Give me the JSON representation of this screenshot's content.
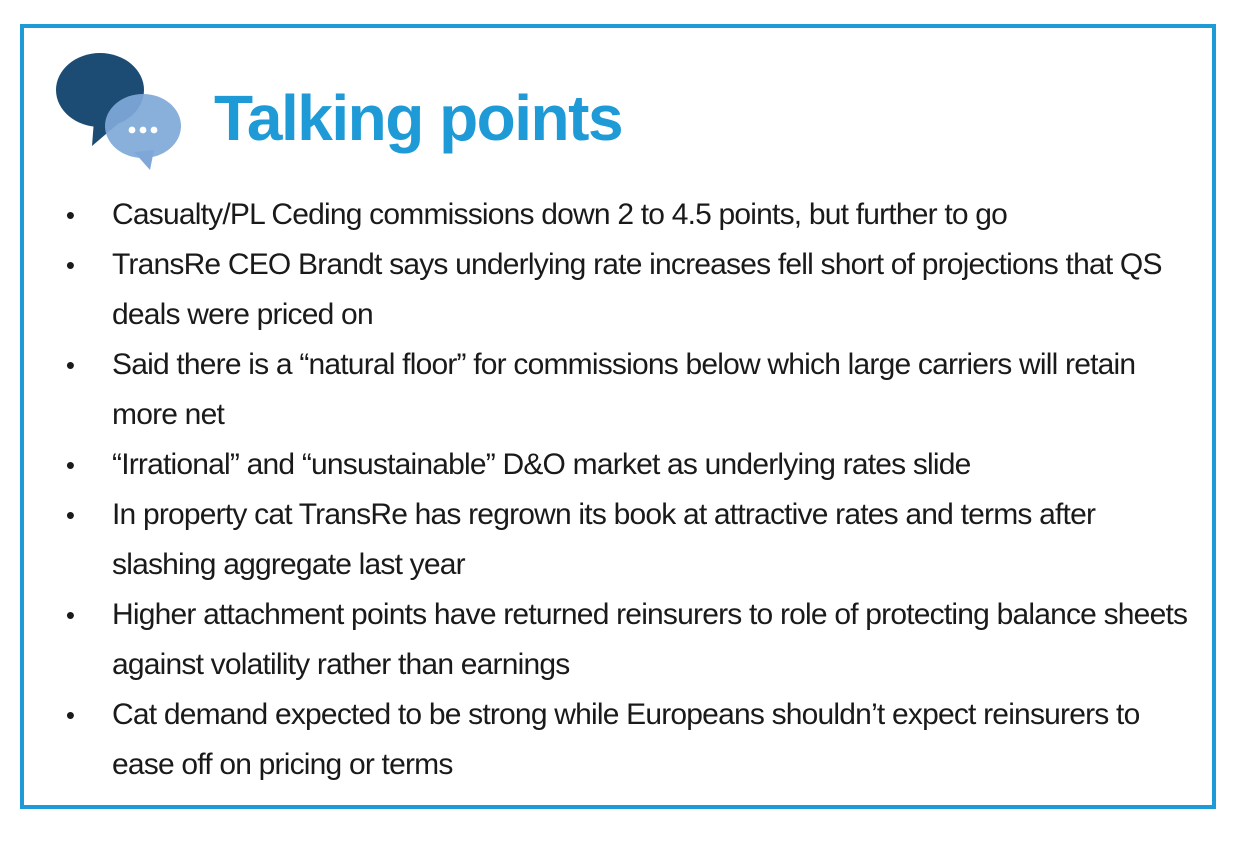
{
  "header": {
    "title": "Talking points",
    "icon": "speech-bubbles-icon",
    "colors": {
      "accent": "#1e9ad6",
      "bubble_dark": "#1c4c74",
      "bubble_light": "#7fa8d8"
    }
  },
  "points": [
    "Casualty/PL Ceding commissions down 2 to 4.5 points, but further to go",
    "TransRe CEO Brandt says underlying rate increases fell short of projections that QS deals were priced on",
    "Said there is a “natural floor” for commissions below which large carriers will retain more net",
    "“Irrational” and “unsustainable” D&O market as underlying rates slide",
    "In property cat TransRe has regrown its book at attractive rates and terms after slashing aggregate last year",
    "Higher attachment points have returned reinsurers to role of protecting balance sheets against volatility rather than earnings",
    "Cat demand expected to be strong while Europeans shouldn’t expect reinsurers to ease off on pricing or terms"
  ],
  "bullet_char": "•"
}
